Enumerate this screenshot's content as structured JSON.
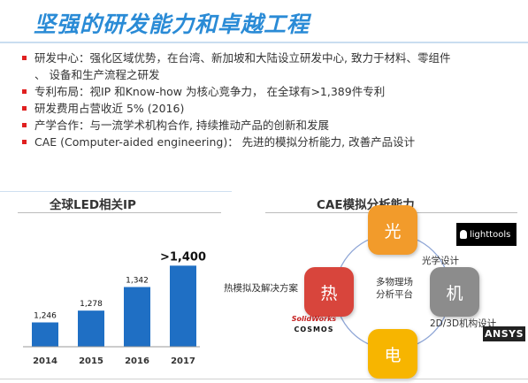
{
  "title": "坚强的研发能力和卓越工程",
  "bullets": [
    {
      "line1": "研发中心：强化区域优势，在台湾、新加坡和大陆设立研发中心, 致力于材料、零组件",
      "line2": "、 设备和生产流程之研发"
    },
    {
      "line1": "专利布局：视IP 和Know-how 为核心竞争力， 在全球有>1,389件专利",
      "line2": ""
    },
    {
      "line1": "研发费用占营收近 5% (2016)",
      "line2": ""
    },
    {
      "line1": "产学合作：与一流学术机构合作, 持续推动产品的创新和发展",
      "line2": ""
    },
    {
      "line1": "CAE (Computer-aided engineering)： 先进的模拟分析能力, 改善产品设计",
      "line2": ""
    }
  ],
  "colors": {
    "title": "#2a8bd6",
    "bullet_marker": "#e02020",
    "bar": "#1f6fc4",
    "orange": "#f29b2b",
    "red": "#d8453c",
    "gray": "#8c8c8c",
    "yellow": "#f7b500"
  },
  "ip_chart": {
    "title": "全球LED相关IP",
    "chart_data": {
      "type": "bar",
      "title": "全球LED相关IP",
      "categories": [
        "2014",
        "2015",
        "2016",
        "2017"
      ],
      "values": [
        1246,
        1278,
        1342,
        1400
      ],
      "value_labels": [
        "1,246",
        "1,278",
        "1,342",
        ">1,400"
      ],
      "ylim": [
        1180,
        1420
      ],
      "grid": false,
      "legend": "none"
    }
  },
  "cae": {
    "title": "CAE模拟分析能力",
    "nodes": {
      "optical": "光",
      "thermal": "热",
      "mechanical": "机",
      "electrical": "电"
    },
    "center_line1": "多物理场",
    "center_line2": "分析平台",
    "labels": {
      "optical": "光学设计",
      "thermal": "热模拟及解决方案",
      "mechanical": "2D/3D机构设计"
    },
    "logos": {
      "lighttools": "lighttools",
      "solidworks_line1": "SolidWorks",
      "solidworks_line2": "COSMOS",
      "ansys": "ANSYS"
    },
    "icons": {
      "lighttools": "lightbulb-icon",
      "solidworks": "solidworks-logo-icon"
    }
  }
}
